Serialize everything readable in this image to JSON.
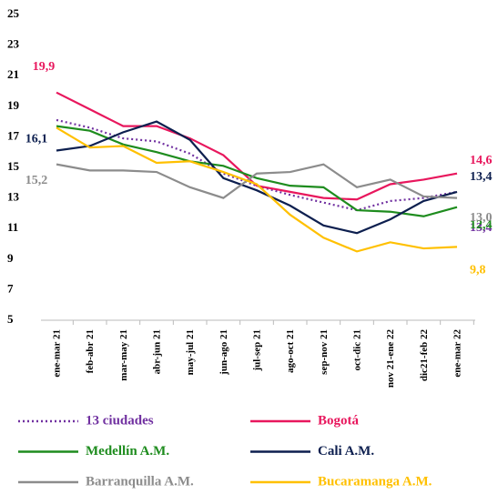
{
  "chart_data": {
    "type": "line",
    "categories": [
      "ene-mar 21",
      "feb-abr 21",
      "mar-may 21",
      "abr-jun 21",
      "may-jul 21",
      "jun-ago 21",
      "jul-sep 21",
      "ago-oct 21",
      "sep-nov 21",
      "oct-dic 21",
      "nov 21-ene 22",
      "dic21-feb 22",
      "ene-mar 22"
    ],
    "ylim": [
      5,
      25
    ],
    "yticks": [
      5,
      7,
      9,
      11,
      13,
      15,
      17,
      19,
      21,
      23,
      25
    ],
    "grid": false,
    "legend": "bottom",
    "series": [
      {
        "name": "13 ciudades",
        "color": "#7030a0",
        "style": "dotted",
        "values": [
          18.1,
          17.6,
          16.9,
          16.7,
          15.9,
          14.6,
          13.8,
          13.2,
          12.7,
          12.2,
          12.8,
          13.0,
          13.4
        ],
        "value_labels": [
          null,
          null,
          null,
          null,
          null,
          null,
          null,
          null,
          null,
          null,
          null,
          null,
          "13,4"
        ]
      },
      {
        "name": "Bogotá",
        "color": "#e8175d",
        "style": "solid",
        "values": [
          19.9,
          18.8,
          17.7,
          17.7,
          16.9,
          15.8,
          13.8,
          13.4,
          13.0,
          12.9,
          13.9,
          14.2,
          14.6
        ],
        "value_labels": [
          "19,9",
          null,
          null,
          null,
          null,
          null,
          null,
          null,
          null,
          null,
          null,
          null,
          "14,6"
        ]
      },
      {
        "name": "Medellín A.M.",
        "color": "#1e8c1e",
        "style": "solid",
        "values": [
          17.7,
          17.4,
          16.5,
          16.0,
          15.4,
          15.1,
          14.3,
          13.8,
          13.7,
          12.2,
          12.1,
          11.8,
          12.4
        ],
        "value_labels": [
          null,
          null,
          null,
          null,
          null,
          null,
          null,
          null,
          null,
          null,
          null,
          null,
          "12,4"
        ]
      },
      {
        "name": "Cali A.M.",
        "color": "#0d1f4f",
        "style": "solid",
        "values": [
          16.1,
          16.4,
          17.3,
          18.0,
          16.8,
          14.3,
          13.5,
          12.5,
          11.2,
          10.7,
          11.6,
          12.8,
          13.4
        ],
        "value_labels": [
          "16,1",
          null,
          null,
          null,
          null,
          null,
          null,
          null,
          null,
          null,
          null,
          null,
          "13,4"
        ]
      },
      {
        "name": "Barranquilla A.M.",
        "color": "#8c8c8c",
        "style": "solid",
        "values": [
          15.2,
          14.8,
          14.8,
          14.7,
          13.7,
          13.0,
          14.6,
          14.7,
          15.2,
          13.7,
          14.2,
          13.1,
          13.0
        ],
        "value_labels": [
          "15,2",
          null,
          null,
          null,
          null,
          null,
          null,
          null,
          null,
          null,
          null,
          null,
          "13,0"
        ]
      },
      {
        "name": "Bucaramanga A.M.",
        "color": "#ffc000",
        "style": "solid",
        "values": [
          17.6,
          16.3,
          16.4,
          15.3,
          15.4,
          14.7,
          13.9,
          11.9,
          10.4,
          9.5,
          10.1,
          9.7,
          9.8
        ],
        "value_labels": [
          null,
          null,
          null,
          null,
          null,
          null,
          null,
          null,
          null,
          null,
          null,
          null,
          "9,8"
        ]
      }
    ]
  }
}
